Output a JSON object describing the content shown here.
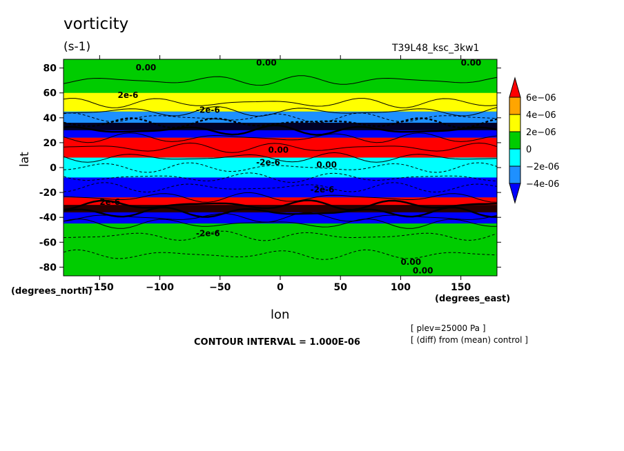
{
  "chart_data": {
    "type": "heatmap",
    "title": "vorticity",
    "units": "(s-1)",
    "run_name": "T39L48_ksc_3kw1",
    "xlabel": "lon",
    "ylabel": "lat",
    "x_units": "(degrees_east)",
    "y_units": "(degrees_north)",
    "xlim": [
      -180,
      180
    ],
    "ylim": [
      -87,
      87
    ],
    "x_ticks": [
      -150,
      -100,
      -50,
      0,
      50,
      100,
      150
    ],
    "y_ticks": [
      80,
      60,
      40,
      20,
      0,
      -20,
      -40,
      -60,
      -80
    ],
    "colorbar": {
      "levels": [
        "6e-06",
        "4e-06",
        "2e-06",
        "0",
        "-2e-06",
        "-4e-06"
      ],
      "colors": [
        "#ff0000",
        "#ffa500",
        "#ffff00",
        "#00cc00",
        "#00ffff",
        "#1e90ff",
        "#0000ff"
      ]
    },
    "contour_interval": "CONTOUR INTERVAL = 1.000E-06",
    "notes": [
      "[ plev=25000 Pa ]",
      "[ (diff) from (mean) control ]"
    ],
    "contour_labels": [
      "0.00",
      "0.00",
      "0.00",
      "2e-6",
      "-2e-6",
      "0.00",
      "-2e-6",
      "0.00",
      "2e-6",
      "-2e-6",
      "0.00",
      "0.00",
      "-2e-6"
    ],
    "bands": [
      {
        "lat": [
          60,
          87
        ],
        "value": 0
      },
      {
        "lat": [
          45,
          60
        ],
        "value": 2e-06
      },
      {
        "lat": [
          36,
          45
        ],
        "value": -4e-06
      },
      {
        "lat": [
          24,
          36
        ],
        "value": -8e-06
      },
      {
        "lat": [
          8,
          24
        ],
        "value": 8e-06
      },
      {
        "lat": [
          -8,
          8
        ],
        "value": -2e-06
      },
      {
        "lat": [
          -24,
          -8
        ],
        "value": -6e-06
      },
      {
        "lat": [
          -36,
          -24
        ],
        "value": 8e-06
      },
      {
        "lat": [
          -45,
          -36
        ],
        "value": -8e-06
      },
      {
        "lat": [
          -87,
          -45
        ],
        "value": 0
      }
    ]
  }
}
